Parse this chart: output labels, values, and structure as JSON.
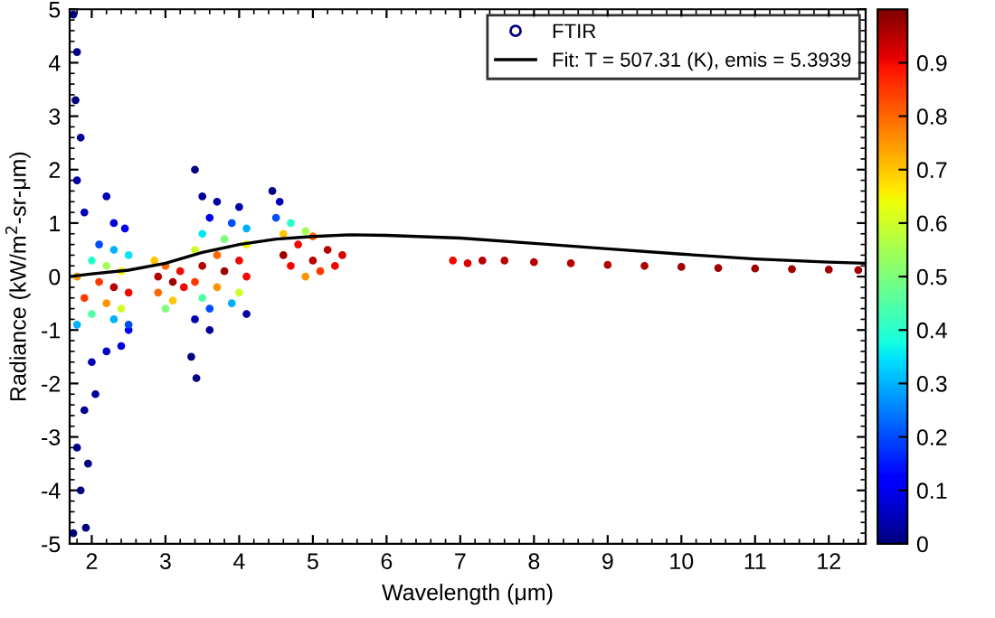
{
  "chart_data": {
    "type": "scatter",
    "xlabel": "Wavelength (μm)",
    "ylabel": "Radiance (kW/m$^{2}$-sr-μm)",
    "xlim": [
      1.7,
      12.5
    ],
    "ylim": [
      -5,
      5
    ],
    "xticks": [
      2,
      3,
      4,
      5,
      6,
      7,
      8,
      9,
      10,
      11,
      12
    ],
    "yticks": [
      -5,
      -4,
      -3,
      -2,
      -1,
      0,
      1,
      2,
      3,
      4,
      5
    ],
    "clim": [
      0,
      1
    ],
    "cticks": [
      0,
      0.1,
      0.2,
      0.3,
      0.4,
      0.5,
      0.6,
      0.7,
      0.8,
      0.9
    ],
    "grid": false,
    "legend": "top right",
    "series": [
      {
        "name": "FTIR",
        "marker": "circle",
        "colors": [
          "#000080",
          "#000080",
          "#000080",
          "#000097",
          "#0000a2",
          "#0000b9",
          "#000080",
          "#000080",
          "#00008b",
          "#000097",
          "#000080",
          "#0000a2",
          "#0000b9",
          "#000080",
          "#0000b9",
          "#0000dc",
          "#0000f3",
          "#0000c5",
          "#0000dc",
          "#0000ff",
          "#004cff",
          "#00b3ff",
          "#00e5f7",
          "#29ffcd",
          "#a4ff52",
          "#f7f500",
          "#ff9700",
          "#ff3800",
          "#b90000",
          "#f30900",
          "#ff3800",
          "#ff9700",
          "#cdff29",
          "#52ffa4",
          "#00b3ff",
          "#004cff",
          "#00b3ff",
          "#ffc600",
          "#ff6800",
          "#f30900",
          "#b90000",
          "#a20000",
          "#f30900",
          "#ff6800",
          "#ffc600",
          "#7bff7b",
          "#000080",
          "#000097",
          "#0000a2",
          "#0000ae",
          "#0000f3",
          "#004cff",
          "#00b3ff",
          "#00e5f7",
          "#7bff7b",
          "#f7f500",
          "#cdff29",
          "#ff6800",
          "#f30900",
          "#b90000",
          "#a20000",
          "#f30900",
          "#ff3800",
          "#ff9700",
          "#cdff29",
          "#52ffa4",
          "#00b3ff",
          "#004cff",
          "#0000b9",
          "#000080",
          "#000080",
          "#000097",
          "#0000a2",
          "#000080",
          "#0000b9",
          "#004cff",
          "#29ffcd",
          "#a4ff52",
          "#ffc600",
          "#ff6800",
          "#f30900",
          "#b90000",
          "#a20000",
          "#b90000",
          "#dc0000",
          "#f30900",
          "#ff3800",
          "#ff9700",
          "#f30900",
          "#f30900",
          "#dc0000",
          "#b90000",
          "#b90000",
          "#b90000",
          "#b90000",
          "#ae0000",
          "#ae0000",
          "#a20000",
          "#a20000",
          "#a20000",
          "#a20000",
          "#a20000",
          "#a20000"
        ],
        "x": [
          1.75,
          1.8,
          1.78,
          1.85,
          1.8,
          1.9,
          1.75,
          1.85,
          1.8,
          1.9,
          1.95,
          2.05,
          2.0,
          1.92,
          2.2,
          2.3,
          2.45,
          2.2,
          2.4,
          2.5,
          2.1,
          2.3,
          2.5,
          2.0,
          2.2,
          2.4,
          1.8,
          2.1,
          2.3,
          2.5,
          1.9,
          2.2,
          2.4,
          2.0,
          2.3,
          2.5,
          1.8,
          2.85,
          3.0,
          3.2,
          2.9,
          3.1,
          3.25,
          2.9,
          3.1,
          3.0,
          3.4,
          3.5,
          3.7,
          4.0,
          3.6,
          3.9,
          4.1,
          3.5,
          3.8,
          4.1,
          3.4,
          3.7,
          4.0,
          3.5,
          3.8,
          4.1,
          3.4,
          3.7,
          4.0,
          3.5,
          3.9,
          3.6,
          3.4,
          3.35,
          3.42,
          3.6,
          4.1,
          4.45,
          4.55,
          4.5,
          4.7,
          4.9,
          4.6,
          5.0,
          4.8,
          5.2,
          4.6,
          5.0,
          5.4,
          4.7,
          5.1,
          4.9,
          5.3,
          6.9,
          7.1,
          7.3,
          7.6,
          8.0,
          8.5,
          9.0,
          9.5,
          10.0,
          10.5,
          11.0,
          11.5,
          12.0,
          12.4
        ],
        "values": [
          4.9,
          4.2,
          3.3,
          2.6,
          1.8,
          1.2,
          -4.8,
          -4.0,
          -3.2,
          -2.5,
          -3.5,
          -2.2,
          -1.6,
          -4.7,
          1.5,
          1.0,
          0.9,
          -1.4,
          -1.3,
          -1.0,
          0.6,
          0.5,
          0.4,
          0.3,
          0.2,
          0.1,
          0.0,
          -0.1,
          -0.2,
          -0.3,
          -0.4,
          -0.5,
          -0.6,
          -0.7,
          -0.8,
          -0.9,
          -0.9,
          0.3,
          0.2,
          0.1,
          0.0,
          -0.1,
          -0.2,
          -0.3,
          -0.45,
          -0.6,
          2.0,
          1.5,
          1.4,
          1.3,
          1.1,
          1.0,
          0.9,
          0.8,
          0.7,
          0.6,
          0.5,
          0.4,
          0.3,
          0.2,
          0.1,
          0.0,
          -0.1,
          -0.2,
          -0.3,
          -0.4,
          -0.5,
          -0.6,
          -0.8,
          -1.5,
          -1.9,
          -1.0,
          -0.7,
          1.6,
          1.4,
          1.1,
          1.0,
          0.85,
          0.8,
          0.75,
          0.6,
          0.5,
          0.4,
          0.3,
          0.4,
          0.2,
          0.1,
          0.0,
          0.2,
          0.3,
          0.25,
          0.3,
          0.3,
          0.27,
          0.25,
          0.22,
          0.2,
          0.18,
          0.16,
          0.15,
          0.14,
          0.13,
          0.12
        ],
        "cvalues": [
          0,
          0,
          0,
          0.02,
          0.03,
          0.05,
          0,
          0,
          0.01,
          0.02,
          0,
          0.03,
          0.05,
          0,
          0.05,
          0.08,
          0.1,
          0.06,
          0.08,
          0.12,
          0.2,
          0.3,
          0.35,
          0.4,
          0.55,
          0.65,
          0.75,
          0.85,
          0.95,
          0.9,
          0.85,
          0.75,
          0.6,
          0.45,
          0.3,
          0.2,
          0.3,
          0.7,
          0.8,
          0.9,
          0.95,
          0.97,
          0.9,
          0.8,
          0.7,
          0.5,
          0,
          0.02,
          0.03,
          0.04,
          0.1,
          0.2,
          0.3,
          0.35,
          0.5,
          0.65,
          0.6,
          0.8,
          0.9,
          0.95,
          0.97,
          0.9,
          0.85,
          0.75,
          0.6,
          0.45,
          0.3,
          0.2,
          0.05,
          0,
          0,
          0.02,
          0.03,
          0,
          0.05,
          0.2,
          0.4,
          0.55,
          0.7,
          0.8,
          0.9,
          0.95,
          0.97,
          0.95,
          0.92,
          0.9,
          0.85,
          0.75,
          0.9,
          0.9,
          0.92,
          0.95,
          0.95,
          0.95,
          0.95,
          0.96,
          0.96,
          0.97,
          0.97,
          0.97,
          0.97,
          0.97,
          0.97
        ]
      },
      {
        "name": "Fit: T = 507.31 (K), emis = 5.3939",
        "type": "line",
        "color": "#000000",
        "line_style": "solid",
        "x": [
          1.7,
          2.0,
          2.5,
          3.0,
          3.5,
          4.0,
          4.5,
          5.0,
          5.5,
          6.0,
          7.0,
          8.0,
          9.0,
          10.0,
          11.0,
          12.0,
          12.5
        ],
        "values": [
          0.0,
          0.05,
          0.12,
          0.25,
          0.45,
          0.6,
          0.7,
          0.75,
          0.78,
          0.77,
          0.72,
          0.62,
          0.52,
          0.42,
          0.33,
          0.27,
          0.25
        ]
      }
    ]
  }
}
